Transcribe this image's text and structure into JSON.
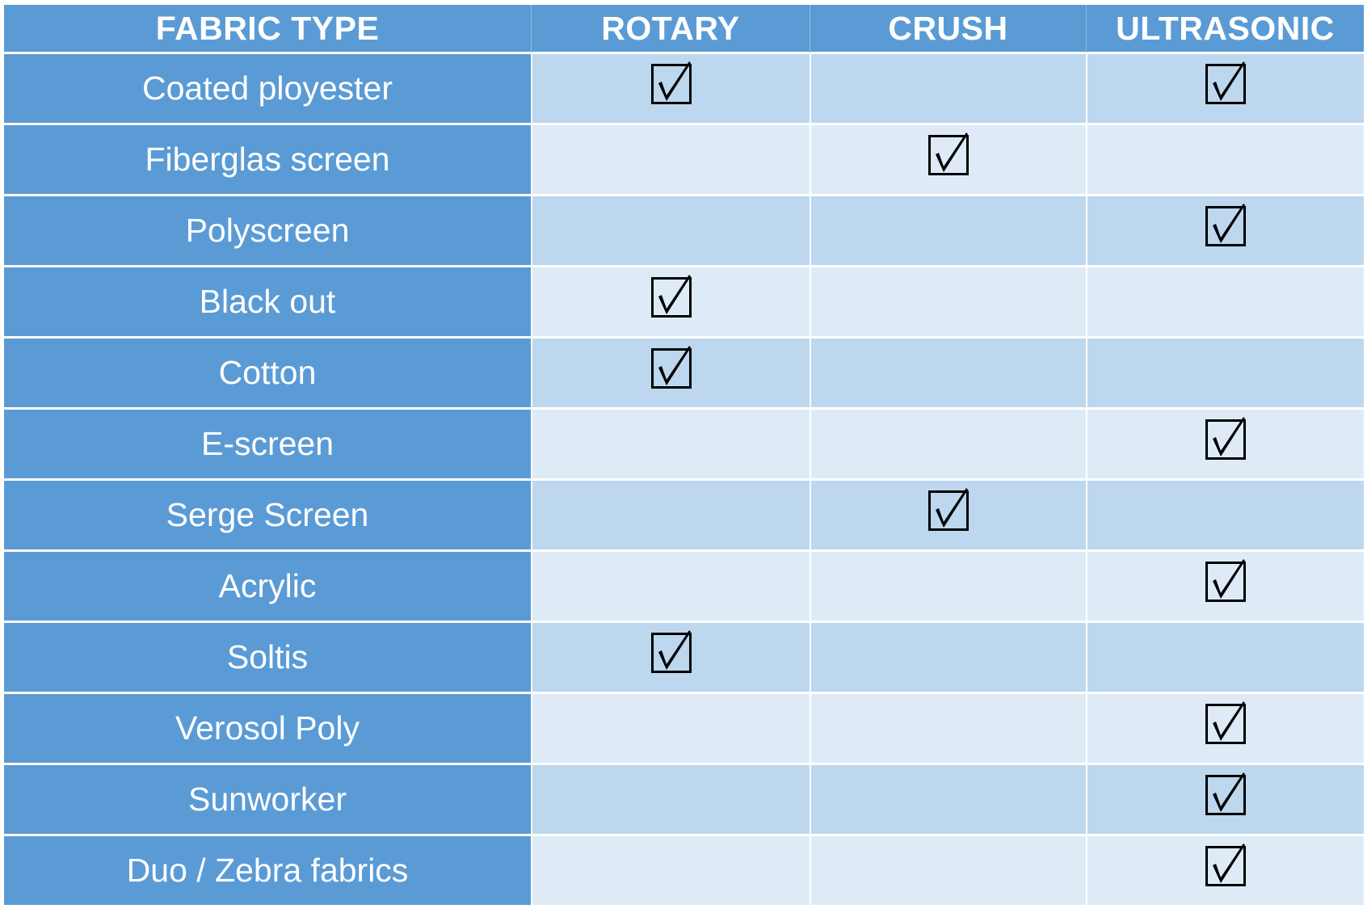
{
  "table": {
    "headers": [
      "FABRIC TYPE",
      "ROTARY",
      "CRUSH",
      "ULTRASONIC"
    ],
    "rows": [
      {
        "fabric": "Coated ployester",
        "rotary": true,
        "crush": false,
        "ultrasonic": true
      },
      {
        "fabric": "Fiberglas screen",
        "rotary": false,
        "crush": true,
        "ultrasonic": false
      },
      {
        "fabric": "Polyscreen",
        "rotary": false,
        "crush": false,
        "ultrasonic": true
      },
      {
        "fabric": "Black out",
        "rotary": true,
        "crush": false,
        "ultrasonic": false
      },
      {
        "fabric": "Cotton",
        "rotary": true,
        "crush": false,
        "ultrasonic": false
      },
      {
        "fabric": "E-screen",
        "rotary": false,
        "crush": false,
        "ultrasonic": true
      },
      {
        "fabric": "Serge Screen",
        "rotary": false,
        "crush": true,
        "ultrasonic": false
      },
      {
        "fabric": "Acrylic",
        "rotary": false,
        "crush": false,
        "ultrasonic": true
      },
      {
        "fabric": "Soltis",
        "rotary": true,
        "crush": false,
        "ultrasonic": false
      },
      {
        "fabric": "Verosol Poly",
        "rotary": false,
        "crush": false,
        "ultrasonic": true
      },
      {
        "fabric": "Sunworker",
        "rotary": false,
        "crush": false,
        "ultrasonic": true
      },
      {
        "fabric": "Duo / Zebra fabrics",
        "rotary": false,
        "crush": false,
        "ultrasonic": true
      }
    ]
  },
  "colors": {
    "header_blue": "#5b9bd5",
    "row_dark": "#bdd7ee",
    "row_light": "#deebf7",
    "text_white": "#ffffff",
    "check_black": "#000000"
  },
  "icons": {
    "checked": "checked-box-icon"
  }
}
